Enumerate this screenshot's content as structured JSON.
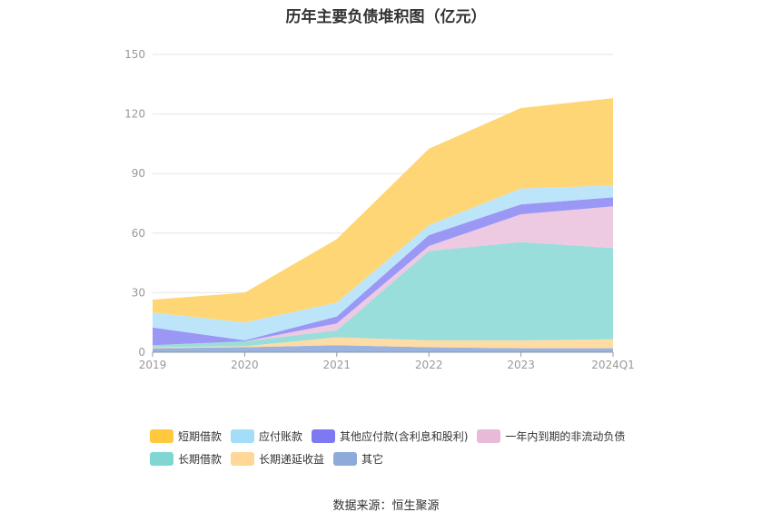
{
  "chart_data": {
    "type": "area",
    "stacked": true,
    "title": "历年主要负债堆积图（亿元）",
    "categories": [
      "2019",
      "2020",
      "2021",
      "2022",
      "2023",
      "2024Q1"
    ],
    "ylim": [
      0,
      150
    ],
    "yticks": [
      0,
      30,
      60,
      90,
      120,
      150
    ],
    "grid": true,
    "legend_position": "bottom",
    "series": [
      {
        "name": "其它",
        "color": "#8eaadb",
        "values": [
          2.0,
          2.5,
          3.5,
          2.5,
          2.0,
          2.0
        ]
      },
      {
        "name": "长期递延收益",
        "color": "#ffd89a",
        "values": [
          0.5,
          0.5,
          4.0,
          3.5,
          4.0,
          4.5
        ]
      },
      {
        "name": "长期借款",
        "color": "#8fdad7",
        "values": [
          1.0,
          2.5,
          3.5,
          45.0,
          49.5,
          46.0
        ]
      },
      {
        "name": "一年内到期的非流动负债",
        "color": "#ecc3df",
        "values": [
          0.0,
          0.0,
          3.5,
          2.5,
          14.0,
          21.0
        ]
      },
      {
        "name": "其他应付款(含利息和股利)",
        "color": "#8f8cf4",
        "values": [
          9.0,
          0.5,
          3.5,
          5.5,
          5.0,
          4.5
        ]
      },
      {
        "name": "应付账款",
        "color": "#b6e2f8",
        "values": [
          7.5,
          9.0,
          7.0,
          5.0,
          8.0,
          6.0
        ]
      },
      {
        "name": "短期借款",
        "color": "#ffd166",
        "values": [
          6.5,
          15.0,
          32.0,
          38.5,
          40.5,
          44.0
        ]
      }
    ],
    "legend_order": [
      "短期借款",
      "应付账款",
      "其他应付款(含利息和股利)",
      "一年内到期的非流动负债",
      "长期借款",
      "长期递延收益",
      "其它"
    ],
    "legend_swatch_colors": {
      "短期借款": "#ffc83d",
      "应付账款": "#a3ddfa",
      "其他应付款(含利息和股利)": "#7d79f2",
      "一年内到期的非流动负债": "#e9b9d8",
      "长期借款": "#7fd6d2",
      "长期递延收益": "#ffd898",
      "其它": "#8eaadb"
    }
  },
  "source": "数据来源：恒生聚源"
}
